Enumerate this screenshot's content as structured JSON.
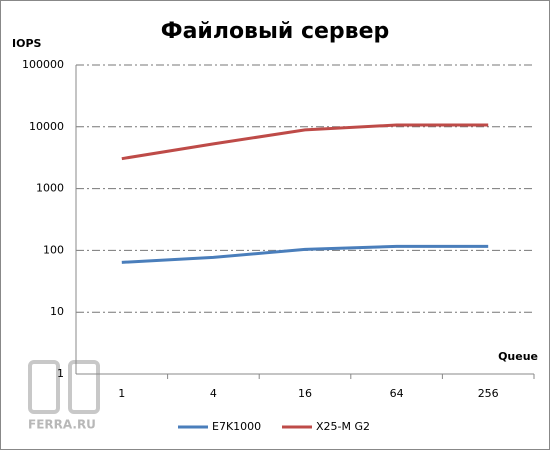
{
  "chart_data": {
    "type": "line",
    "title": "Файловый сервер",
    "y_label": "IOPS",
    "x_label": "Queue",
    "watermark": "FERRA.RU",
    "categories": [
      "1",
      "4",
      "16",
      "64",
      "256"
    ],
    "series": [
      {
        "name": "E7K1000",
        "color": "#4a7ebb",
        "values": [
          64,
          77,
          104,
          116,
          116
        ]
      },
      {
        "name": "X25-M G2",
        "color": "#be4b48",
        "values": [
          3050,
          5300,
          8900,
          10700,
          10700
        ]
      }
    ],
    "ylim": [
      1,
      100000
    ],
    "yticks": [
      1,
      10,
      100,
      1000,
      10000,
      100000
    ],
    "log_y": true,
    "grid": true
  }
}
